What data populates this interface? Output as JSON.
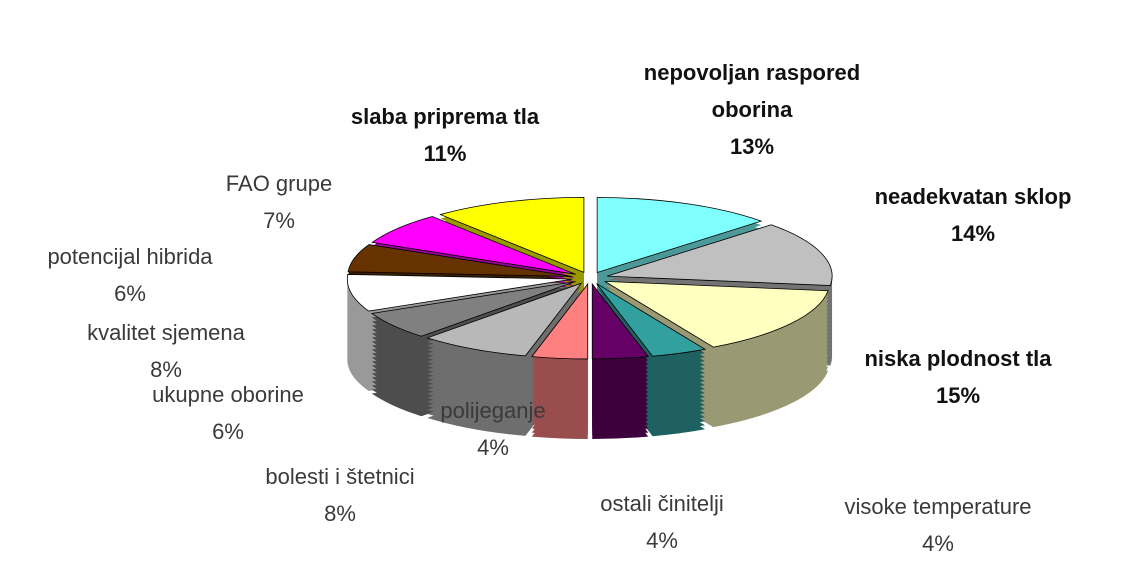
{
  "chart_data": {
    "type": "pie",
    "categories": [
      "nepovoljan raspored oborina",
      "neadekvatan sklop",
      "niska plodnost tla",
      "visoke temperature",
      "ostali činitelji",
      "polijeganje",
      "bolesti i  štetnici",
      "ukupne oborine",
      "kvalitet sjemena",
      "potencijal hibrida",
      "FAO grupe",
      "slaba priprema tla"
    ],
    "values": [
      13,
      14,
      15,
      4,
      4,
      4,
      8,
      6,
      8,
      6,
      7,
      11
    ],
    "value_labels": [
      "13%",
      "14%",
      "15%",
      "4%",
      "4%",
      "4%",
      "8%",
      "6%",
      "8%",
      "6%",
      "7%",
      "11%"
    ],
    "colors": [
      "#80ffff",
      "#c0c0c0",
      "#ffffc0",
      "#33a0a0",
      "#660066",
      "#ff8080",
      "#b8b8b8",
      "#808080",
      "#ffffff",
      "#663300",
      "#ff00ff",
      "#ffff00"
    ]
  }
}
